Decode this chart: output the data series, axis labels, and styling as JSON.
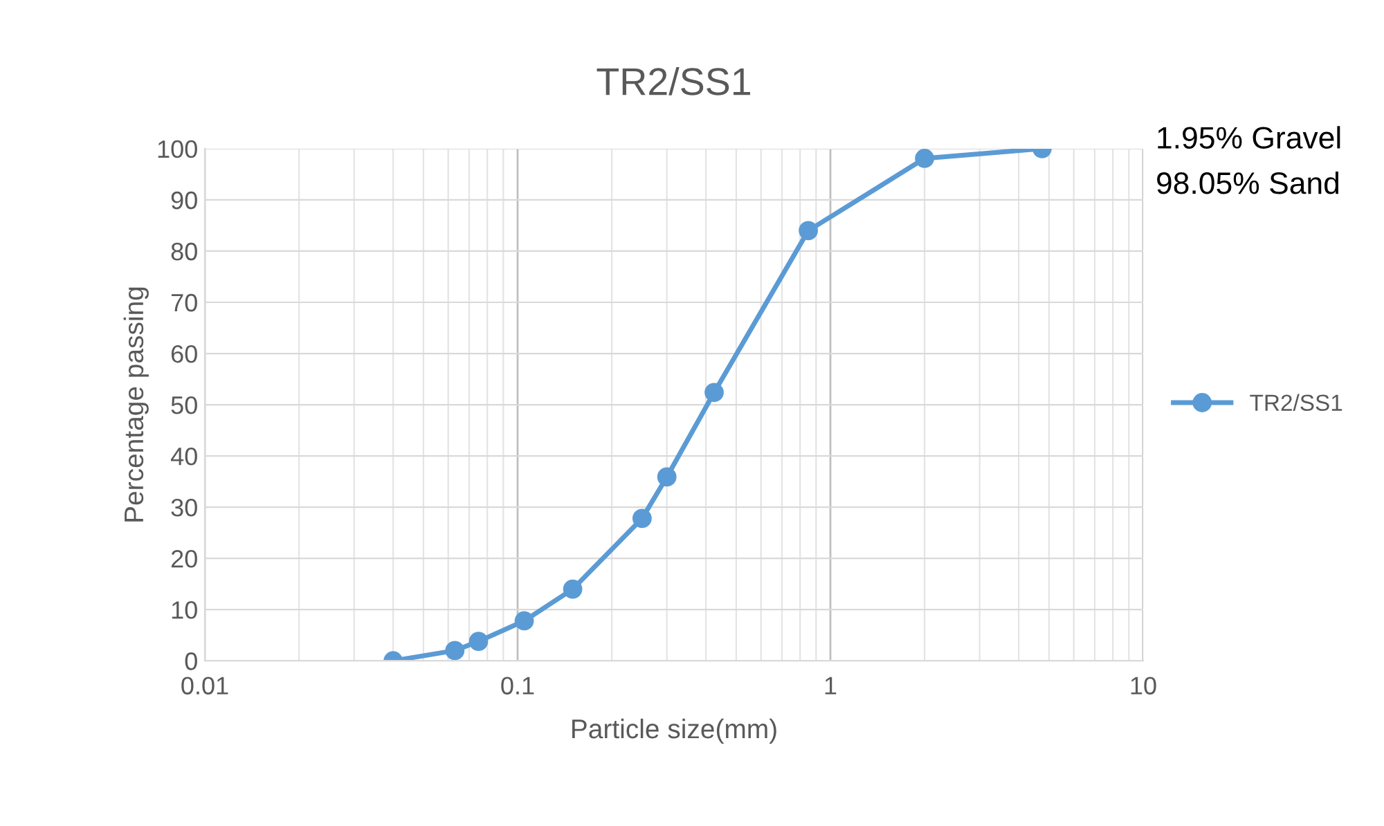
{
  "chart_data": {
    "type": "line",
    "title": "TR2/SS1",
    "xlabel": "Particle size(mm)",
    "ylabel": "Percentage passing",
    "log": "x",
    "x": [
      0.04,
      0.063,
      0.075,
      0.105,
      0.15,
      0.25,
      0.3,
      0.425,
      0.85,
      2,
      4.75
    ],
    "series": [
      {
        "name": "TR2/SS1",
        "color": "#5b9bd5",
        "values": [
          0,
          2,
          3.8,
          7.8,
          14,
          27.8,
          35.9,
          52.4,
          84,
          98.1,
          100
        ]
      }
    ],
    "xlim": [
      0.01,
      10
    ],
    "xticks": [
      0.01,
      0.1,
      1,
      10
    ],
    "ylim": [
      0,
      100
    ],
    "yticks": [
      0,
      10,
      20,
      30,
      40,
      50,
      60,
      70,
      80,
      90,
      100
    ],
    "grid": true,
    "legend": "right",
    "marker": "circle",
    "line_style": "solid",
    "annotations": [
      "1.95% Gravel",
      "98.05% Sand"
    ]
  }
}
